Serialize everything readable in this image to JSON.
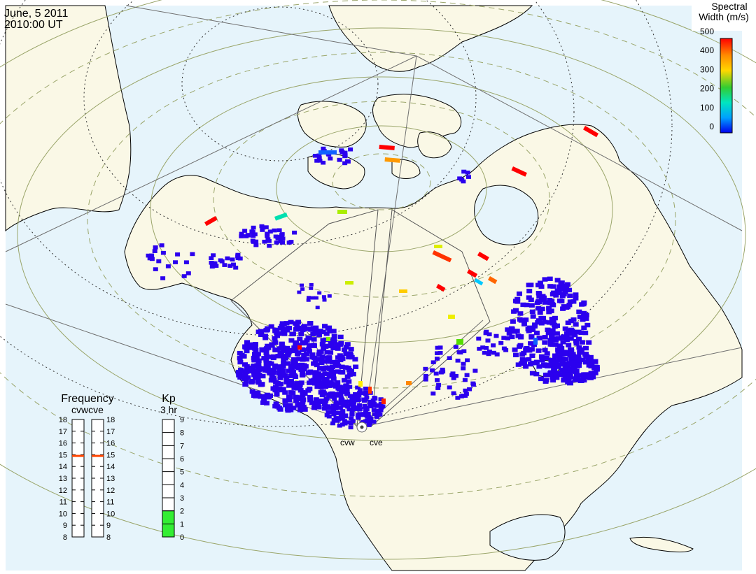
{
  "header": {
    "date": "June, 5 2011",
    "time": "2010:00 UT"
  },
  "colorbar": {
    "title_line1": "Spectral",
    "title_line2": "Width (m/s)",
    "ticks": [
      "500",
      "400",
      "300",
      "200",
      "100",
      "0"
    ],
    "colors": [
      "#ff0000",
      "#ff8c00",
      "#ffd700",
      "#32cd32",
      "#00e5c0",
      "#00a0ff",
      "#0000ee"
    ]
  },
  "radars": {
    "west": "cvw",
    "east": "cve"
  },
  "frequency": {
    "title": "Frequency",
    "subtitle": "cvwcve",
    "ticks": [
      "18",
      "17",
      "16",
      "15",
      "14",
      "13",
      "12",
      "11",
      "10",
      "9",
      "8"
    ],
    "cvw_value": 14.9,
    "cve_value": 14.9,
    "marker_color": "#ff4500"
  },
  "kp": {
    "title": "Kp",
    "subtitle": "3 hr",
    "ticks": [
      "9",
      "8",
      "7",
      "6",
      "5",
      "4",
      "3",
      "2",
      "1",
      "0"
    ],
    "value": 2,
    "fill_color": "#33ee33"
  },
  "map": {
    "ocean": "#e6f4fb",
    "land": "#faf8e6",
    "coast": "#000000"
  }
}
